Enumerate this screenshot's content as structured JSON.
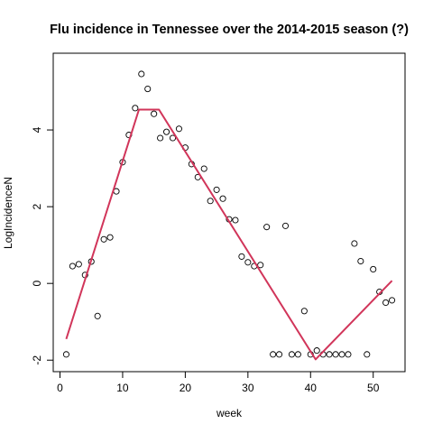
{
  "chart_data": {
    "type": "scatter",
    "title": "Flu incidence in Tennessee over the 2014-2015 season (?)",
    "xlabel": "week",
    "ylabel": "LogIncidenceN",
    "xlim": [
      -1.08,
      55.08
    ],
    "ylim": [
      -2.3,
      6.0
    ],
    "xticks": [
      0,
      10,
      20,
      30,
      40,
      50
    ],
    "yticks": [
      -2,
      0,
      2,
      4
    ],
    "x_tick_labels": [
      "0",
      "10",
      "20",
      "30",
      "40",
      "50"
    ],
    "y_tick_labels": [
      "-2",
      "0",
      "2",
      "4"
    ],
    "grid": false,
    "legend": "none",
    "series": [
      {
        "kind": "points",
        "color": "#000000",
        "x": [
          1,
          2,
          3,
          4,
          5,
          6,
          7,
          8,
          9,
          10,
          11,
          12,
          13,
          14,
          15,
          16,
          17,
          18,
          19,
          20,
          21,
          22,
          23,
          24,
          25,
          26,
          27,
          28,
          29,
          30,
          31,
          32,
          33,
          34,
          35,
          36,
          37,
          38,
          39,
          40,
          41,
          42,
          43,
          44,
          45,
          46,
          47,
          48,
          49,
          50,
          51,
          52,
          53
        ],
        "y": [
          -1.85,
          0.45,
          0.5,
          0.22,
          0.57,
          -0.85,
          1.15,
          1.2,
          2.4,
          3.16,
          3.87,
          4.57,
          5.46,
          5.07,
          4.42,
          3.79,
          3.95,
          3.79,
          4.03,
          3.54,
          3.11,
          2.77,
          2.99,
          2.15,
          2.44,
          2.21,
          1.67,
          1.65,
          0.7,
          0.55,
          0.45,
          0.48,
          1.47,
          -1.85,
          -1.85,
          1.5,
          -1.85,
          -1.85,
          -0.72,
          -1.85,
          -1.75,
          -1.85,
          -1.85,
          -1.85,
          -1.85,
          -1.85,
          1.04,
          0.58,
          -1.85,
          0.37,
          -0.22,
          -0.5,
          -0.44
        ]
      },
      {
        "kind": "line",
        "color": "#D1355A",
        "x": [
          1,
          12.6,
          15.8,
          40.8,
          53
        ],
        "y": [
          -1.45,
          4.53,
          4.53,
          -1.98,
          0.07
        ]
      }
    ]
  }
}
